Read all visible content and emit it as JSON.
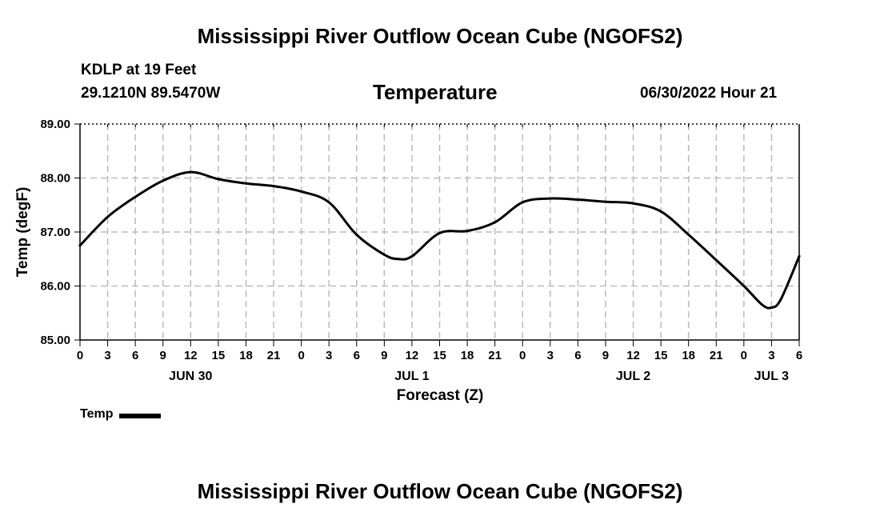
{
  "header": {
    "title": "Mississippi River Outflow Ocean Cube (NGOFS2)",
    "station": "KDLP at 19 Feet",
    "coords": "29.1210N  89.5470W",
    "variable": "Temperature",
    "timestamp": "06/30/2022 Hour 21"
  },
  "footer": {
    "title": "Mississippi River Outflow Ocean Cube (NGOFS2)"
  },
  "legend": {
    "label": "Temp"
  },
  "colors": {
    "line": "#000000",
    "grid": "#bbbbbb",
    "background": "#ffffff"
  },
  "chart_data": {
    "type": "line",
    "title": "Temperature",
    "xlabel": "Forecast (Z)",
    "ylabel": "Temp (degF)",
    "xlim": [
      0,
      78
    ],
    "ylim": [
      85.0,
      89.0
    ],
    "x_tick_values": [
      0,
      3,
      6,
      9,
      12,
      15,
      18,
      21,
      24,
      27,
      30,
      33,
      36,
      39,
      42,
      45,
      48,
      51,
      54,
      57,
      60,
      63,
      66,
      69,
      72,
      75,
      78
    ],
    "x_tick_labels": [
      "0",
      "3",
      "6",
      "9",
      "12",
      "15",
      "18",
      "21",
      "0",
      "3",
      "6",
      "9",
      "12",
      "15",
      "18",
      "21",
      "0",
      "3",
      "6",
      "9",
      "12",
      "15",
      "18",
      "21",
      "0",
      "3",
      "6"
    ],
    "y_tick_values": [
      85,
      86,
      87,
      88,
      89
    ],
    "y_tick_labels": [
      "85.00",
      "86.00",
      "87.00",
      "88.00",
      "89.00"
    ],
    "day_labels": [
      {
        "label": "JUN 30",
        "at": 12
      },
      {
        "label": "JUL 1",
        "at": 36
      },
      {
        "label": "JUL 2",
        "at": 60
      },
      {
        "label": "JUL 3",
        "at": 75
      }
    ],
    "grid": true,
    "legend_position": "bottom-left",
    "series": [
      {
        "name": "Temp",
        "x": [
          0,
          3,
          6,
          9,
          12,
          15,
          18,
          21,
          24,
          27,
          30,
          33,
          34.5,
          36,
          39,
          42,
          45,
          48,
          51,
          54,
          57,
          60,
          63,
          66,
          69,
          72,
          74,
          75,
          76,
          78
        ],
        "values": [
          86.75,
          87.28,
          87.65,
          87.95,
          88.11,
          87.98,
          87.9,
          87.85,
          87.75,
          87.55,
          86.95,
          86.58,
          86.5,
          86.55,
          86.98,
          87.02,
          87.18,
          87.55,
          87.62,
          87.6,
          87.56,
          87.53,
          87.38,
          86.95,
          86.48,
          86.0,
          85.65,
          85.6,
          85.75,
          86.55
        ]
      }
    ]
  }
}
